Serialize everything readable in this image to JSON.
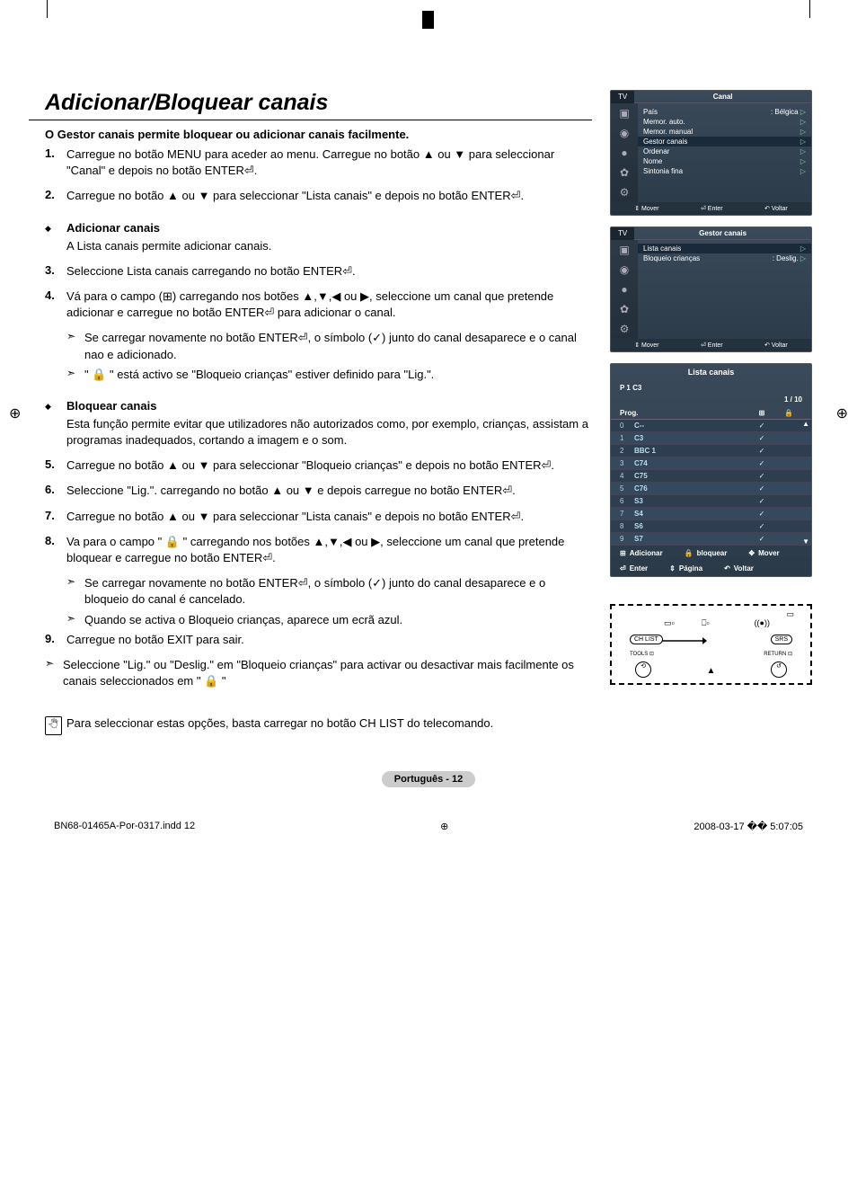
{
  "title": "Adicionar/Bloquear canais",
  "intro": "O Gestor canais permite bloquear ou adicionar canais facilmente.",
  "steps": {
    "s1": "Carregue no botão MENU para aceder ao menu. Carregue no botão ▲ ou ▼ para seleccionar \"Canal\" e depois no botão ENTER⏎.",
    "s2": "Carregue no botão ▲ ou ▼ para seleccionar \"Lista canais\" e depois no botão ENTER⏎.",
    "s3": "Seleccione Lista canais carregando no botão ENTER⏎.",
    "s4": "Vá para o campo (⊞) carregando nos botões ▲,▼,◀ ou ▶, seleccione um canal que pretende adicionar e carregue no botão ENTER⏎ para adicionar o canal.",
    "s5": "Carregue no botão ▲ ou ▼ para seleccionar \"Bloqueio crianças\" e depois no botão ENTER⏎.",
    "s6": "Seleccione \"Lig.\". carregando no botão ▲ ou ▼ e depois carregue no botão ENTER⏎.",
    "s7": "Carregue no botão ▲ ou ▼ para seleccionar \"Lista canais\" e depois no botão ENTER⏎.",
    "s8": "Va para o campo \" 🔒 \"  carregando nos botões ▲,▼,◀ ou ▶, seleccione um canal que pretende bloquear e carregue no botão ENTER⏎.",
    "s9": "Carregue no botão EXIT para sair."
  },
  "sub_add": {
    "label": "Adicionar canais",
    "body": "A Lista canais permite adicionar canais."
  },
  "sub_block": {
    "label": "Bloquear canais",
    "body": "Esta função permite evitar que utilizadores não autorizados como, por exemplo, crianças, assistam a programas inadequados, cortando a imagem e o som."
  },
  "notes": {
    "n4a": "Se carregar novamente no botão ENTER⏎, o símbolo (✓) junto do canal desaparece e o canal nao e adicionado.",
    "n4b": "\" 🔒 \" está activo se \"Bloqueio crianças\" estiver definido para \"Lig.\".",
    "n8a": "Se carregar novamente no botão ENTER⏎, o símbolo (✓) junto do canal desaparece e o bloqueio do canal é cancelado.",
    "n8b": "Quando se activa o Bloqueio crianças, aparece um ecrã azul.",
    "n9": "Seleccione \"Lig.\" ou \"Deslig.\" em \"Bloqueio crianças\" para activar ou desactivar mais facilmente os canais seleccionados em \" 🔒 \""
  },
  "final_note": "Para seleccionar estas opções, basta carregar no botão CH LIST do telecomando.",
  "menu1": {
    "tab": "TV",
    "title": "Canal",
    "rows": [
      {
        "l": "País",
        "r": ": Bélgica"
      },
      {
        "l": "Memor. auto.",
        "r": ""
      },
      {
        "l": "Memor. manual",
        "r": ""
      },
      {
        "l": "Gestor canais",
        "r": "",
        "hl": true
      },
      {
        "l": "Ordenar",
        "r": ""
      },
      {
        "l": "Nome",
        "r": ""
      },
      {
        "l": "Sintonia fina",
        "r": ""
      }
    ],
    "footer": {
      "a": "⇕ Mover",
      "b": "⏎ Enter",
      "c": "↶ Voltar"
    }
  },
  "menu2": {
    "tab": "TV",
    "title": "Gestor canais",
    "rows": [
      {
        "l": "Lista canais",
        "r": "",
        "hl": true
      },
      {
        "l": "Bloqueio crianças",
        "r": ": Deslig."
      }
    ],
    "footer": {
      "a": "⇕ Mover",
      "b": "⏎ Enter",
      "c": "↶ Voltar"
    }
  },
  "list": {
    "title": "Lista canais",
    "sub": "P  1  C3",
    "counter": "1 / 10",
    "col_prog": "Prog.",
    "rows": [
      {
        "n": "0",
        "name": "C--",
        "chk": "✓"
      },
      {
        "n": "1",
        "name": "C3",
        "chk": "✓"
      },
      {
        "n": "2",
        "name": "BBC 1",
        "chk": "✓"
      },
      {
        "n": "3",
        "name": "C74",
        "chk": "✓"
      },
      {
        "n": "4",
        "name": "C75",
        "chk": "✓"
      },
      {
        "n": "5",
        "name": "C76",
        "chk": "✓"
      },
      {
        "n": "6",
        "name": "S3",
        "chk": "✓"
      },
      {
        "n": "7",
        "name": "S4",
        "chk": "✓"
      },
      {
        "n": "8",
        "name": "S6",
        "chk": "✓"
      },
      {
        "n": "9",
        "name": "S7",
        "chk": "✓"
      }
    ],
    "actions": {
      "add": "Adicionar",
      "lock": "bloquear",
      "move": "Mover",
      "enter": "Enter",
      "page": "Página",
      "back": "Voltar"
    }
  },
  "remote": {
    "chlist": "CH LIST",
    "srs": "SRS",
    "tools": "TOOLS ⊡",
    "return": "RETURN ⊡"
  },
  "page_num": "Português - 12",
  "footer": {
    "left": "BN68-01465A-Por-0317.indd   12",
    "right": "2008-03-17   �� 5:07:05"
  }
}
